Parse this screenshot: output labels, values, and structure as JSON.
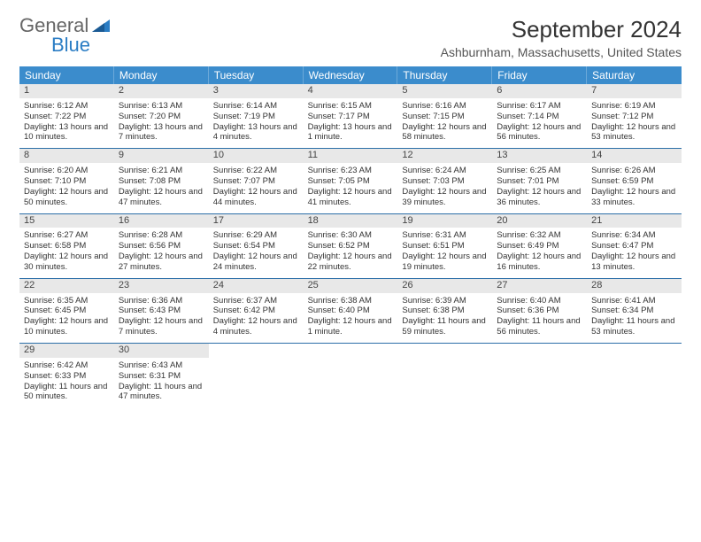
{
  "logo": {
    "part1": "General",
    "part2": "Blue"
  },
  "title": "September 2024",
  "location": "Ashburnham, Massachusetts, United States",
  "colors": {
    "header_bg": "#3b8ccc",
    "row_border": "#2c6fa8",
    "daynum_bg": "#e8e8e8",
    "text": "#333333",
    "logo_gray": "#666666",
    "logo_blue": "#2b7dc4"
  },
  "fonts": {
    "title_size_pt": 20,
    "location_size_pt": 11,
    "dow_size_pt": 9,
    "cell_size_pt": 7
  },
  "dow": [
    "Sunday",
    "Monday",
    "Tuesday",
    "Wednesday",
    "Thursday",
    "Friday",
    "Saturday"
  ],
  "weeks": [
    [
      {
        "n": "1",
        "sr": "6:12 AM",
        "ss": "7:22 PM",
        "dl": "13 hours and 10 minutes."
      },
      {
        "n": "2",
        "sr": "6:13 AM",
        "ss": "7:20 PM",
        "dl": "13 hours and 7 minutes."
      },
      {
        "n": "3",
        "sr": "6:14 AM",
        "ss": "7:19 PM",
        "dl": "13 hours and 4 minutes."
      },
      {
        "n": "4",
        "sr": "6:15 AM",
        "ss": "7:17 PM",
        "dl": "13 hours and 1 minute."
      },
      {
        "n": "5",
        "sr": "6:16 AM",
        "ss": "7:15 PM",
        "dl": "12 hours and 58 minutes."
      },
      {
        "n": "6",
        "sr": "6:17 AM",
        "ss": "7:14 PM",
        "dl": "12 hours and 56 minutes."
      },
      {
        "n": "7",
        "sr": "6:19 AM",
        "ss": "7:12 PM",
        "dl": "12 hours and 53 minutes."
      }
    ],
    [
      {
        "n": "8",
        "sr": "6:20 AM",
        "ss": "7:10 PM",
        "dl": "12 hours and 50 minutes."
      },
      {
        "n": "9",
        "sr": "6:21 AM",
        "ss": "7:08 PM",
        "dl": "12 hours and 47 minutes."
      },
      {
        "n": "10",
        "sr": "6:22 AM",
        "ss": "7:07 PM",
        "dl": "12 hours and 44 minutes."
      },
      {
        "n": "11",
        "sr": "6:23 AM",
        "ss": "7:05 PM",
        "dl": "12 hours and 41 minutes."
      },
      {
        "n": "12",
        "sr": "6:24 AM",
        "ss": "7:03 PM",
        "dl": "12 hours and 39 minutes."
      },
      {
        "n": "13",
        "sr": "6:25 AM",
        "ss": "7:01 PM",
        "dl": "12 hours and 36 minutes."
      },
      {
        "n": "14",
        "sr": "6:26 AM",
        "ss": "6:59 PM",
        "dl": "12 hours and 33 minutes."
      }
    ],
    [
      {
        "n": "15",
        "sr": "6:27 AM",
        "ss": "6:58 PM",
        "dl": "12 hours and 30 minutes."
      },
      {
        "n": "16",
        "sr": "6:28 AM",
        "ss": "6:56 PM",
        "dl": "12 hours and 27 minutes."
      },
      {
        "n": "17",
        "sr": "6:29 AM",
        "ss": "6:54 PM",
        "dl": "12 hours and 24 minutes."
      },
      {
        "n": "18",
        "sr": "6:30 AM",
        "ss": "6:52 PM",
        "dl": "12 hours and 22 minutes."
      },
      {
        "n": "19",
        "sr": "6:31 AM",
        "ss": "6:51 PM",
        "dl": "12 hours and 19 minutes."
      },
      {
        "n": "20",
        "sr": "6:32 AM",
        "ss": "6:49 PM",
        "dl": "12 hours and 16 minutes."
      },
      {
        "n": "21",
        "sr": "6:34 AM",
        "ss": "6:47 PM",
        "dl": "12 hours and 13 minutes."
      }
    ],
    [
      {
        "n": "22",
        "sr": "6:35 AM",
        "ss": "6:45 PM",
        "dl": "12 hours and 10 minutes."
      },
      {
        "n": "23",
        "sr": "6:36 AM",
        "ss": "6:43 PM",
        "dl": "12 hours and 7 minutes."
      },
      {
        "n": "24",
        "sr": "6:37 AM",
        "ss": "6:42 PM",
        "dl": "12 hours and 4 minutes."
      },
      {
        "n": "25",
        "sr": "6:38 AM",
        "ss": "6:40 PM",
        "dl": "12 hours and 1 minute."
      },
      {
        "n": "26",
        "sr": "6:39 AM",
        "ss": "6:38 PM",
        "dl": "11 hours and 59 minutes."
      },
      {
        "n": "27",
        "sr": "6:40 AM",
        "ss": "6:36 PM",
        "dl": "11 hours and 56 minutes."
      },
      {
        "n": "28",
        "sr": "6:41 AM",
        "ss": "6:34 PM",
        "dl": "11 hours and 53 minutes."
      }
    ],
    [
      {
        "n": "29",
        "sr": "6:42 AM",
        "ss": "6:33 PM",
        "dl": "11 hours and 50 minutes."
      },
      {
        "n": "30",
        "sr": "6:43 AM",
        "ss": "6:31 PM",
        "dl": "11 hours and 47 minutes."
      },
      null,
      null,
      null,
      null,
      null
    ]
  ],
  "labels": {
    "sunrise": "Sunrise:",
    "sunset": "Sunset:",
    "daylight": "Daylight:"
  }
}
